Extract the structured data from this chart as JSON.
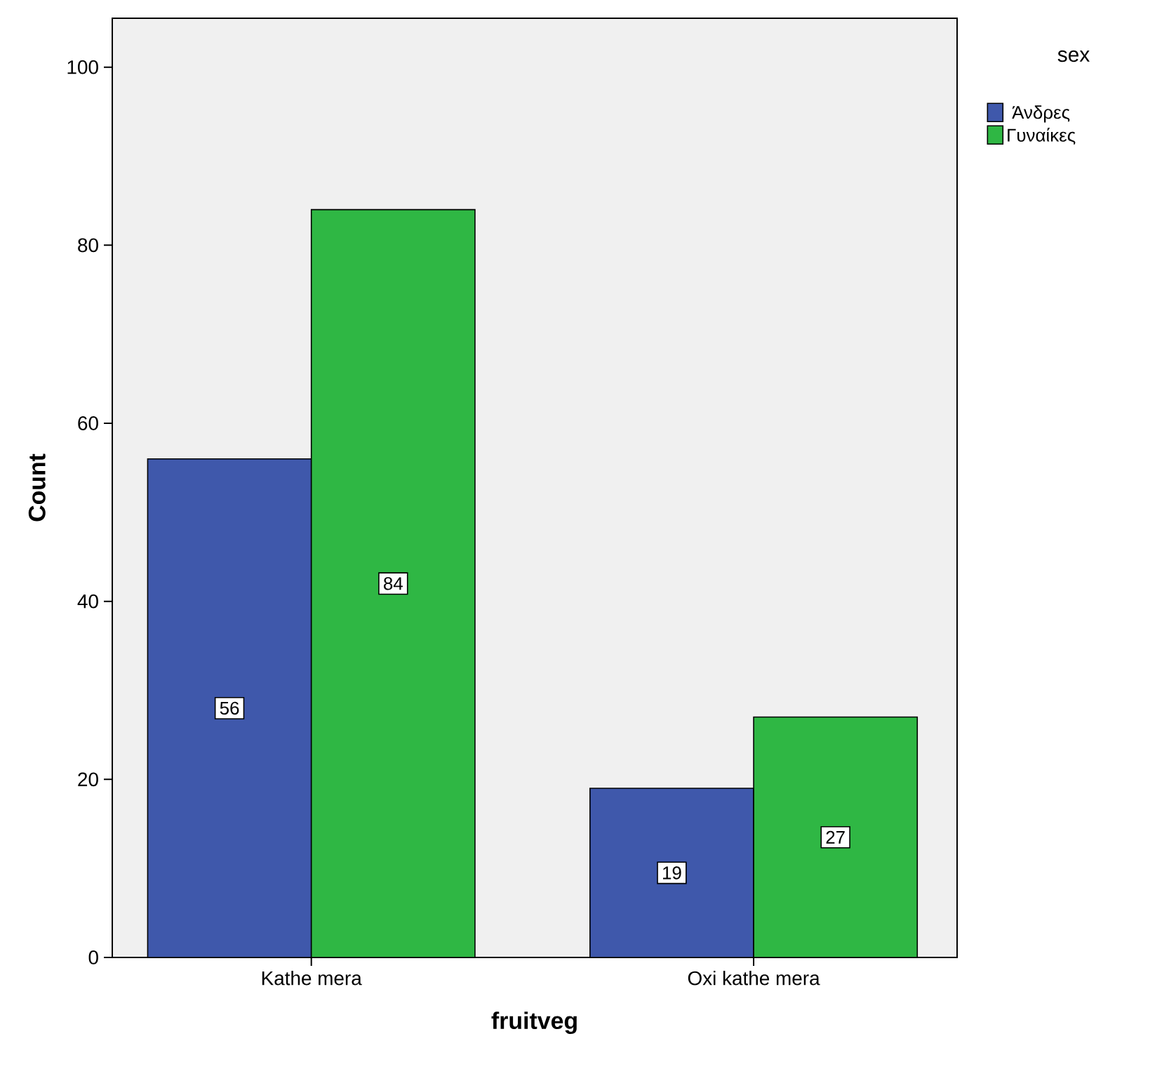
{
  "chart_data": {
    "type": "bar",
    "xlabel": "fruitveg",
    "ylabel": "Count",
    "legend_title": "sex",
    "legend": "top right",
    "categories": [
      "Kathe mera",
      "Oxi kathe mera"
    ],
    "series": [
      {
        "name": "Άνδρες",
        "color": "#3f58ab",
        "values": [
          56,
          19
        ]
      },
      {
        "name": "Γυναίκες",
        "color": "#2fb744",
        "values": [
          84,
          27
        ]
      }
    ],
    "ylim": [
      0,
      105.5
    ],
    "yticks": [
      0,
      20,
      40,
      60,
      80,
      100
    ],
    "data_labels": true,
    "grid": false
  }
}
